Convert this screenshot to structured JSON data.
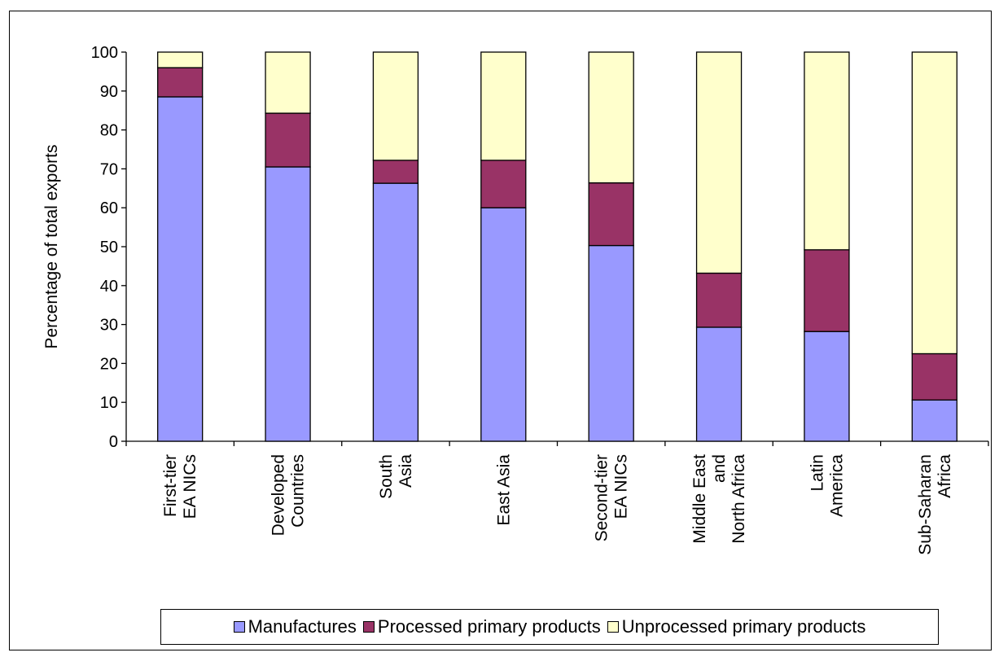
{
  "chart_data": {
    "type": "bar",
    "stacked": true,
    "title": "",
    "xlabel": "",
    "ylabel": "Percentage of total exports",
    "ylim": [
      0,
      100
    ],
    "yticks": [
      0,
      10,
      20,
      30,
      40,
      50,
      60,
      70,
      80,
      90,
      100
    ],
    "grid": false,
    "legend_position": "bottom",
    "categories": [
      [
        "First-tier",
        "EA NICs"
      ],
      [
        "Developed",
        "Countries"
      ],
      [
        "South",
        "Asia"
      ],
      [
        "East Asia"
      ],
      [
        "Second-tier",
        "EA NICs"
      ],
      [
        "Middle East",
        "and",
        "North Africa"
      ],
      [
        "Latin",
        "America"
      ],
      [
        "Sub-Saharan",
        "Africa"
      ]
    ],
    "series": [
      {
        "name": "Manufactures",
        "color": "#9999ff",
        "values": [
          88.5,
          70.5,
          66.3,
          60,
          50.3,
          29.3,
          28.2,
          10.6
        ]
      },
      {
        "name": "Processed primary products",
        "color": "#993366",
        "values": [
          7.5,
          13.8,
          5.9,
          12.2,
          16.1,
          13.9,
          21,
          11.9
        ]
      },
      {
        "name": "Unprocessed primary products",
        "color": "#ffffcc",
        "values": [
          4,
          15.7,
          27.8,
          27.8,
          33.6,
          56.8,
          50.8,
          77.5
        ]
      }
    ]
  }
}
